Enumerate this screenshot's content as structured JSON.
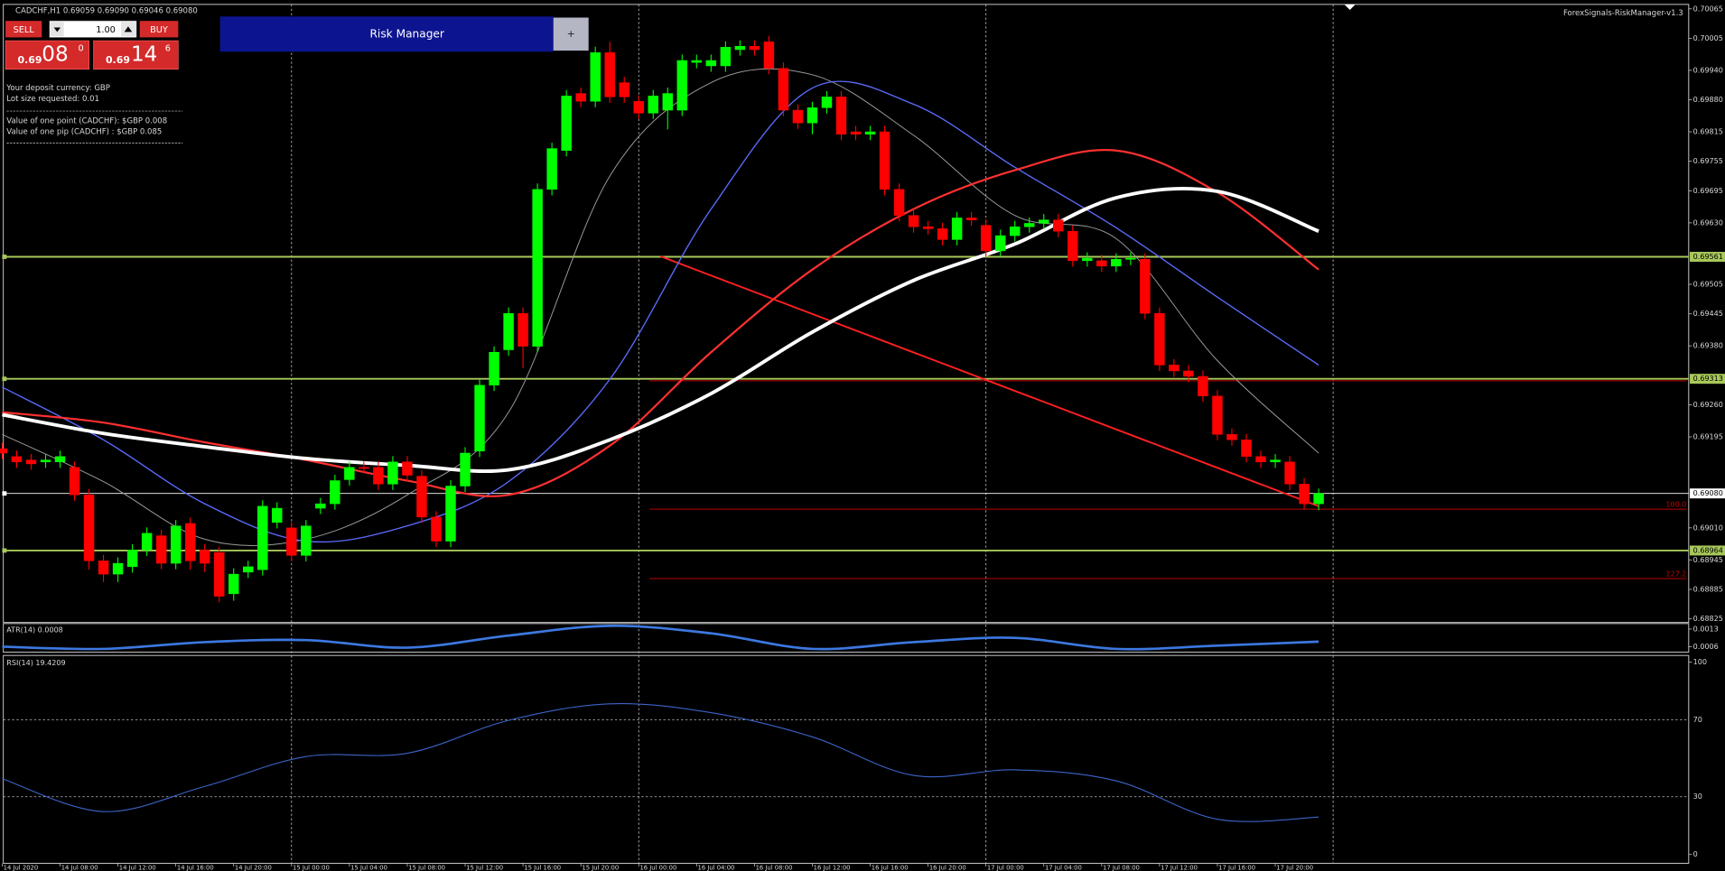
{
  "header": {
    "symbol_line": "CADCHF,H1  0.69059 0.69090 0.69046 0.69080",
    "indicator_name": "ForexSignals-RiskManager-v1.3"
  },
  "trade_panel": {
    "sell": "SELL",
    "buy": "BUY",
    "lot": "1.00",
    "sell_price": {
      "prefix": "0.69",
      "big": "08",
      "sup": "0"
    },
    "buy_price": {
      "prefix": "0.69",
      "big": "14",
      "sup": "6"
    }
  },
  "risk_manager": {
    "title": "Risk Manager",
    "toggle": "+"
  },
  "info": [
    "Your deposit currency: GBP",
    "Lot size requested: 0.01",
    "Value of one point (CADCHF):  $GBP 0.008",
    "Value of one pip   (CADCHF) : $GBP 0.085"
  ],
  "chart": {
    "type": "candlestick",
    "categories": [
      "14 Jul 2020",
      null,
      null,
      null,
      "14 Jul 08:00",
      null,
      null,
      null,
      "14 Jul 12:00",
      null,
      null,
      null,
      "14 Jul 16:00",
      null,
      null,
      null,
      "14 Jul 20:00",
      null,
      null,
      null,
      "15 Jul 00:00",
      null,
      null,
      null,
      "15 Jul 04:00",
      null,
      null,
      null,
      "15 Jul 08:00",
      null,
      null,
      null,
      "15 Jul 12:00",
      null,
      null,
      null,
      "15 Jul 16:00",
      null,
      null,
      null,
      "15 Jul 20:00",
      null,
      null,
      null,
      "16 Jul 00:00",
      null,
      null,
      null,
      "16 Jul 04:00",
      null,
      null,
      null,
      "16 Jul 08:00",
      null,
      null,
      null,
      "16 Jul 12:00",
      null,
      null,
      null,
      "16 Jul 16:00",
      null,
      null,
      null,
      "16 Jul 20:00",
      null,
      null,
      null,
      "17 Jul 00:00",
      null,
      null,
      null,
      "17 Jul 04:00",
      null,
      null,
      null,
      "17 Jul 08:00",
      null,
      null,
      null,
      "17 Jul 12:00",
      null,
      null,
      null,
      "17 Jul 16:00",
      null,
      null,
      null,
      "17 Jul 20:00",
      null,
      null,
      null
    ],
    "candles": [
      [
        0.69171,
        0.69183,
        0.6915,
        0.69162
      ],
      [
        0.69155,
        0.69167,
        0.69132,
        0.69144
      ],
      [
        0.69148,
        0.6916,
        0.69128,
        0.6914
      ],
      [
        0.69144,
        0.6916,
        0.69132,
        0.69148
      ],
      [
        0.69144,
        0.69167,
        0.69132,
        0.69155
      ],
      [
        0.69133,
        0.69145,
        0.69065,
        0.69077
      ],
      [
        0.69077,
        0.69089,
        0.68925,
        0.68943
      ],
      [
        0.68943,
        0.68955,
        0.689,
        0.68916
      ],
      [
        0.68916,
        0.6895,
        0.689,
        0.68938
      ],
      [
        0.68931,
        0.68977,
        0.68919,
        0.68965
      ],
      [
        0.68965,
        0.69011,
        0.68953,
        0.68999
      ],
      [
        0.68994,
        0.69006,
        0.68926,
        0.68938
      ],
      [
        0.68938,
        0.69026,
        0.68926,
        0.69014
      ],
      [
        0.69019,
        0.69031,
        0.68925,
        0.68943
      ],
      [
        0.68965,
        0.68977,
        0.6892,
        0.68938
      ],
      [
        0.6896,
        0.68972,
        0.68859,
        0.68871
      ],
      [
        0.68876,
        0.68928,
        0.68862,
        0.68916
      ],
      [
        0.6892,
        0.68943,
        0.68908,
        0.68931
      ],
      [
        0.68925,
        0.69066,
        0.68913,
        0.69054
      ],
      [
        0.69021,
        0.69062,
        0.69009,
        0.6905
      ],
      [
        0.6901,
        0.69022,
        0.68942,
        0.68954
      ],
      [
        0.68954,
        0.69026,
        0.68942,
        0.69014
      ],
      [
        0.6905,
        0.69071,
        0.69038,
        0.69059
      ],
      [
        0.69059,
        0.69118,
        0.69047,
        0.69106
      ],
      [
        0.69108,
        0.69145,
        0.69096,
        0.69133
      ],
      [
        0.69133,
        0.69145,
        0.69121,
        0.69131
      ],
      [
        0.69133,
        0.69145,
        0.69087,
        0.69099
      ],
      [
        0.69099,
        0.69156,
        0.69087,
        0.69144
      ],
      [
        0.69144,
        0.69156,
        0.69105,
        0.69117
      ],
      [
        0.69115,
        0.69127,
        0.6902,
        0.69032
      ],
      [
        0.69032,
        0.69044,
        0.68971,
        0.68983
      ],
      [
        0.68983,
        0.69107,
        0.68971,
        0.69095
      ],
      [
        0.69095,
        0.69174,
        0.69083,
        0.69162
      ],
      [
        0.69166,
        0.69312,
        0.69154,
        0.693
      ],
      [
        0.693,
        0.69379,
        0.69288,
        0.69367
      ],
      [
        0.69372,
        0.69458,
        0.6936,
        0.69446
      ],
      [
        0.69446,
        0.69458,
        0.69335,
        0.69379
      ],
      [
        0.69379,
        0.6971,
        0.69367,
        0.69698
      ],
      [
        0.69698,
        0.69793,
        0.69686,
        0.69781
      ],
      [
        0.69777,
        0.699,
        0.69765,
        0.69888
      ],
      [
        0.69893,
        0.69905,
        0.69865,
        0.69877
      ],
      [
        0.69877,
        0.69988,
        0.69865,
        0.69976
      ],
      [
        0.69976,
        0.69998,
        0.69874,
        0.69886
      ],
      [
        0.69915,
        0.69927,
        0.69874,
        0.69886
      ],
      [
        0.69877,
        0.69889,
        0.69841,
        0.69853
      ],
      [
        0.69853,
        0.699,
        0.69841,
        0.69888
      ],
      [
        0.69859,
        0.69905,
        0.6982,
        0.69893
      ],
      [
        0.69859,
        0.69972,
        0.69847,
        0.6996
      ],
      [
        0.69956,
        0.69972,
        0.69944,
        0.6996
      ],
      [
        0.69949,
        0.69972,
        0.69937,
        0.6996
      ],
      [
        0.69949,
        0.69999,
        0.69937,
        0.69987
      ],
      [
        0.69982,
        0.70001,
        0.6997,
        0.69989
      ],
      [
        0.69989,
        0.70001,
        0.6997,
        0.69982
      ],
      [
        0.69998,
        0.7001,
        0.69932,
        0.69944
      ],
      [
        0.69944,
        0.69956,
        0.69847,
        0.69859
      ],
      [
        0.69859,
        0.69871,
        0.69821,
        0.69833
      ],
      [
        0.69833,
        0.69876,
        0.6981,
        0.69864
      ],
      [
        0.69864,
        0.69898,
        0.69852,
        0.69886
      ],
      [
        0.69886,
        0.69898,
        0.69798,
        0.6981
      ],
      [
        0.69815,
        0.69827,
        0.69798,
        0.6981
      ],
      [
        0.6981,
        0.69827,
        0.69798,
        0.69815
      ],
      [
        0.69815,
        0.69827,
        0.69686,
        0.69698
      ],
      [
        0.69698,
        0.6971,
        0.69633,
        0.69645
      ],
      [
        0.69645,
        0.69657,
        0.6961,
        0.69622
      ],
      [
        0.69622,
        0.69634,
        0.69606,
        0.69618
      ],
      [
        0.69618,
        0.6963,
        0.69584,
        0.69596
      ],
      [
        0.69596,
        0.69652,
        0.69584,
        0.6964
      ],
      [
        0.6964,
        0.69652,
        0.69624,
        0.69636
      ],
      [
        0.69625,
        0.69637,
        0.69561,
        0.69573
      ],
      [
        0.69573,
        0.69616,
        0.69561,
        0.69604
      ],
      [
        0.69604,
        0.69634,
        0.69592,
        0.69622
      ],
      [
        0.69622,
        0.69641,
        0.6961,
        0.69629
      ],
      [
        0.69629,
        0.69648,
        0.69617,
        0.69636
      ],
      [
        0.69636,
        0.69648,
        0.69601,
        0.69613
      ],
      [
        0.69613,
        0.69625,
        0.69541,
        0.69553
      ],
      [
        0.69553,
        0.6957,
        0.69541,
        0.69558
      ],
      [
        0.69553,
        0.69565,
        0.6953,
        0.69542
      ],
      [
        0.69542,
        0.69568,
        0.6953,
        0.69556
      ],
      [
        0.69556,
        0.6957,
        0.69544,
        0.69558
      ],
      [
        0.69556,
        0.69568,
        0.69434,
        0.69446
      ],
      [
        0.69446,
        0.69458,
        0.69329,
        0.69341
      ],
      [
        0.69341,
        0.69353,
        0.69317,
        0.69329
      ],
      [
        0.69329,
        0.69341,
        0.69306,
        0.69318
      ],
      [
        0.69318,
        0.6933,
        0.69266,
        0.69278
      ],
      [
        0.69278,
        0.6929,
        0.69188,
        0.692
      ],
      [
        0.692,
        0.69212,
        0.69177,
        0.69189
      ],
      [
        0.69189,
        0.69201,
        0.69143,
        0.69155
      ],
      [
        0.69155,
        0.69167,
        0.69132,
        0.69144
      ],
      [
        0.69144,
        0.6916,
        0.69132,
        0.69148
      ],
      [
        0.69144,
        0.69156,
        0.69087,
        0.69099
      ],
      [
        0.69099,
        0.69111,
        0.69047,
        0.69059
      ],
      [
        0.69059,
        0.6909,
        0.69046,
        0.6908
      ]
    ],
    "colors": {
      "up": "#00ff00",
      "down": "#ff0000"
    },
    "ylim": [
      0.6882,
      0.70074
    ],
    "yticks": [
      0.70065,
      0.70005,
      {
        "value": 0.6994,
        "label": "0.69940"
      },
      {
        "value": 0.6988,
        "label": "0.69880"
      },
      0.69815,
      0.69755,
      0.69695,
      {
        "value": 0.6963,
        "label": "0.69630"
      },
      0.69505,
      0.69445,
      {
        "value": 0.6938,
        "label": "0.69380"
      },
      {
        "value": 0.6926,
        "label": "0.69260"
      },
      0.69195,
      {
        "value": 0.6901,
        "label": "0.69010"
      },
      0.68945,
      0.68885,
      0.68825
    ],
    "ma": [
      {
        "color": "#9a9a9a",
        "width": 0.8,
        "values": [
          0.692,
          0.69104,
          0.68987,
          0.68987,
          0.69077,
          0.69245,
          0.69725,
          0.69915,
          0.69931,
          0.69808,
          0.69645,
          0.69598,
          0.6935,
          0.69162
        ]
      },
      {
        "color": "#5b6cff",
        "width": 1.1,
        "values": [
          0.69296,
          0.69189,
          0.69059,
          0.68983,
          0.69014,
          0.69104,
          0.69312,
          0.69658,
          0.69904,
          0.69871,
          0.69743,
          0.6962,
          0.69479,
          0.69341
        ]
      },
      {
        "color": "#ff3030",
        "width": 1.8,
        "values": [
          0.69245,
          0.69224,
          0.69184,
          0.69148,
          0.69106,
          0.69077,
          0.69177,
          0.69367,
          0.69535,
          0.69658,
          0.69737,
          0.69777,
          0.69692,
          0.69535
        ]
      },
      {
        "color": "#ffffff",
        "width": 3.2,
        "values": [
          0.6924,
          0.69202,
          0.69175,
          0.69151,
          0.69137,
          0.69128,
          0.69189,
          0.69283,
          0.69408,
          0.69513,
          0.69587,
          0.69681,
          0.69694,
          0.69613
        ]
      }
    ],
    "levels": [
      {
        "value": 0.69561,
        "label": "0.69561",
        "color": "#a8c85a"
      },
      {
        "value": 0.69313,
        "label": "0.69313",
        "color": "#a8c85a"
      },
      {
        "value": 0.6908,
        "label": "0.69080",
        "color": "#ffffff"
      },
      {
        "value": 0.68964,
        "label": "0.68964",
        "color": "#a8c85a"
      }
    ],
    "fibs": [
      {
        "price": 0.69309
      },
      {
        "price": 0.69048,
        "label": "100.0"
      },
      {
        "price": 0.68907,
        "label": "127.2"
      }
    ],
    "fib_color": "#c00000",
    "trendline": {
      "x": [
        45.5,
        91
      ],
      "values": [
        0.69562,
        0.69054
      ],
      "color": "#ff2020"
    },
    "atr": {
      "label": "ATR(14) 0.0008",
      "color": "#3c78e0",
      "ylim": [
        0.00038,
        0.00152
      ],
      "yticks": [
        0.0013,
        0.0006
      ],
      "values": [
        0.0006,
        0.00051,
        0.00078,
        0.00086,
        0.00056,
        0.00104,
        0.00143,
        0.00113,
        0.00051,
        0.00078,
        0.00095,
        0.00051,
        0.00064,
        0.0008
      ]
    },
    "rsi": {
      "label": "RSI(14) 19.4209",
      "color": "#3c64c8",
      "ylim": [
        0,
        100
      ],
      "yticks": [
        100,
        70,
        30,
        0
      ],
      "values": [
        39.4,
        22.3,
        35.4,
        50.9,
        52.6,
        69.7,
        78.3,
        73.7,
        61.1,
        41.1,
        44.0,
        38.3,
        18.3,
        19.4209
      ]
    }
  }
}
